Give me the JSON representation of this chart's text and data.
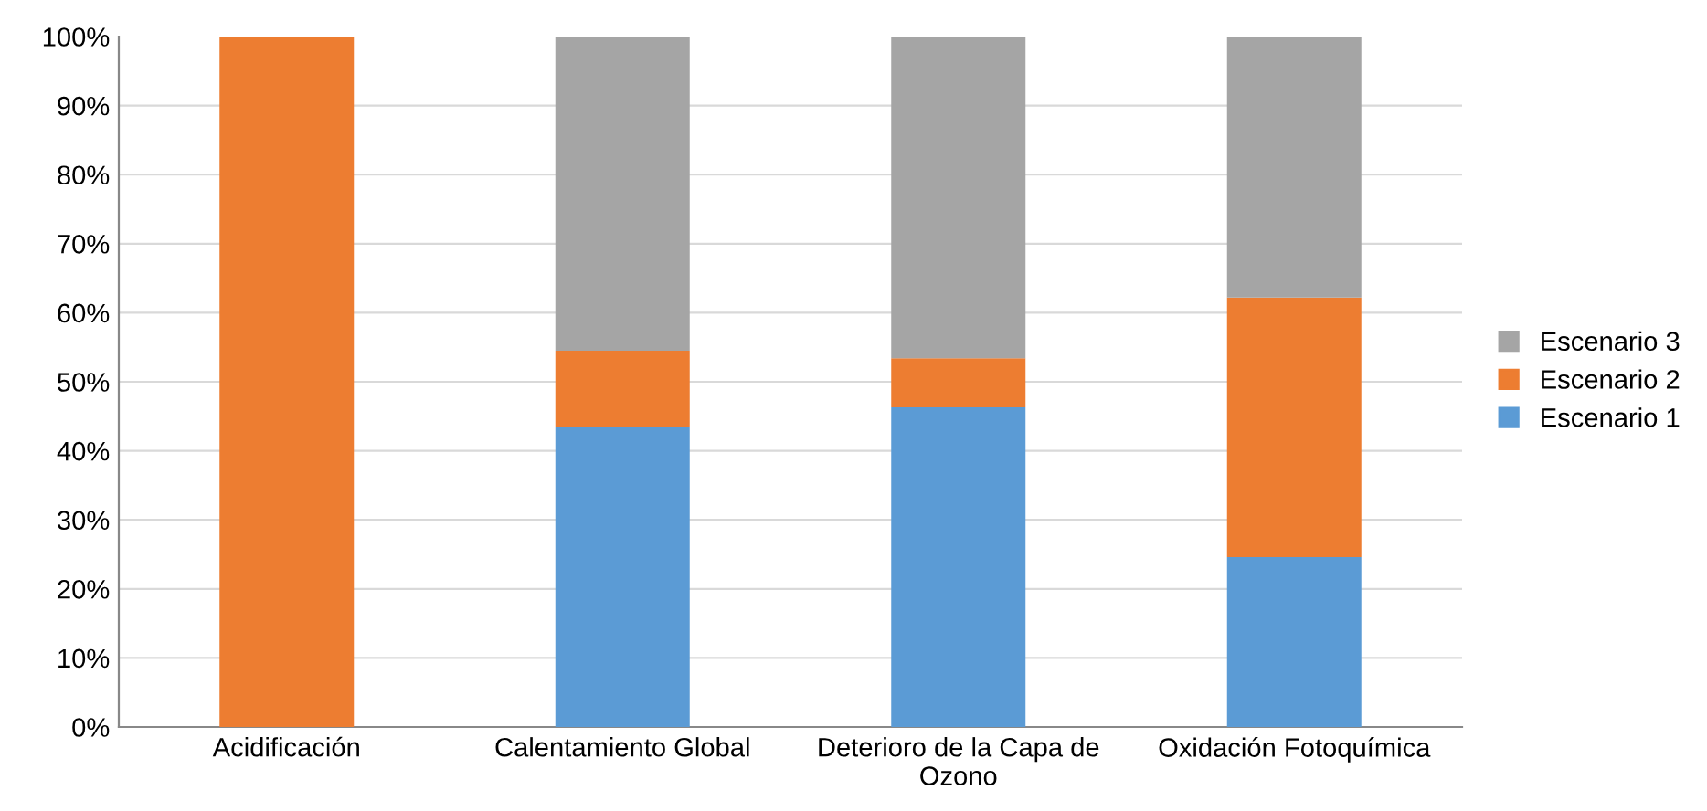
{
  "chart_data": {
    "type": "bar",
    "stacked": true,
    "categories": [
      "Acidificación",
      "Calentamiento Global",
      "Deterioro de la Capa de Ozono",
      "Oxidación Fotoquímica"
    ],
    "series": [
      {
        "name": "Escenario 1",
        "color": "#5b9bd5",
        "values": [
          0,
          43.4,
          46.3,
          24.6
        ]
      },
      {
        "name": "Escenario 2",
        "color": "#ed7d31",
        "values": [
          100,
          11.1,
          7.1,
          37.6
        ]
      },
      {
        "name": "Escenario 3",
        "color": "#a5a5a5",
        "values": [
          0,
          45.5,
          46.6,
          37.8
        ]
      }
    ],
    "ylim": [
      0,
      100
    ],
    "yticks": [
      {
        "value": 0,
        "label": "0%"
      },
      {
        "value": 10,
        "label": "10%"
      },
      {
        "value": 20,
        "label": "20%"
      },
      {
        "value": 30,
        "label": "30%"
      },
      {
        "value": 40,
        "label": "40%"
      },
      {
        "value": 50,
        "label": "50%"
      },
      {
        "value": 60,
        "label": "60%"
      },
      {
        "value": 70,
        "label": "70%"
      },
      {
        "value": 80,
        "label": "80%"
      },
      {
        "value": 90,
        "label": "90%"
      },
      {
        "value": 100,
        "label": "100%"
      }
    ],
    "grid": "y",
    "legend": "right"
  }
}
